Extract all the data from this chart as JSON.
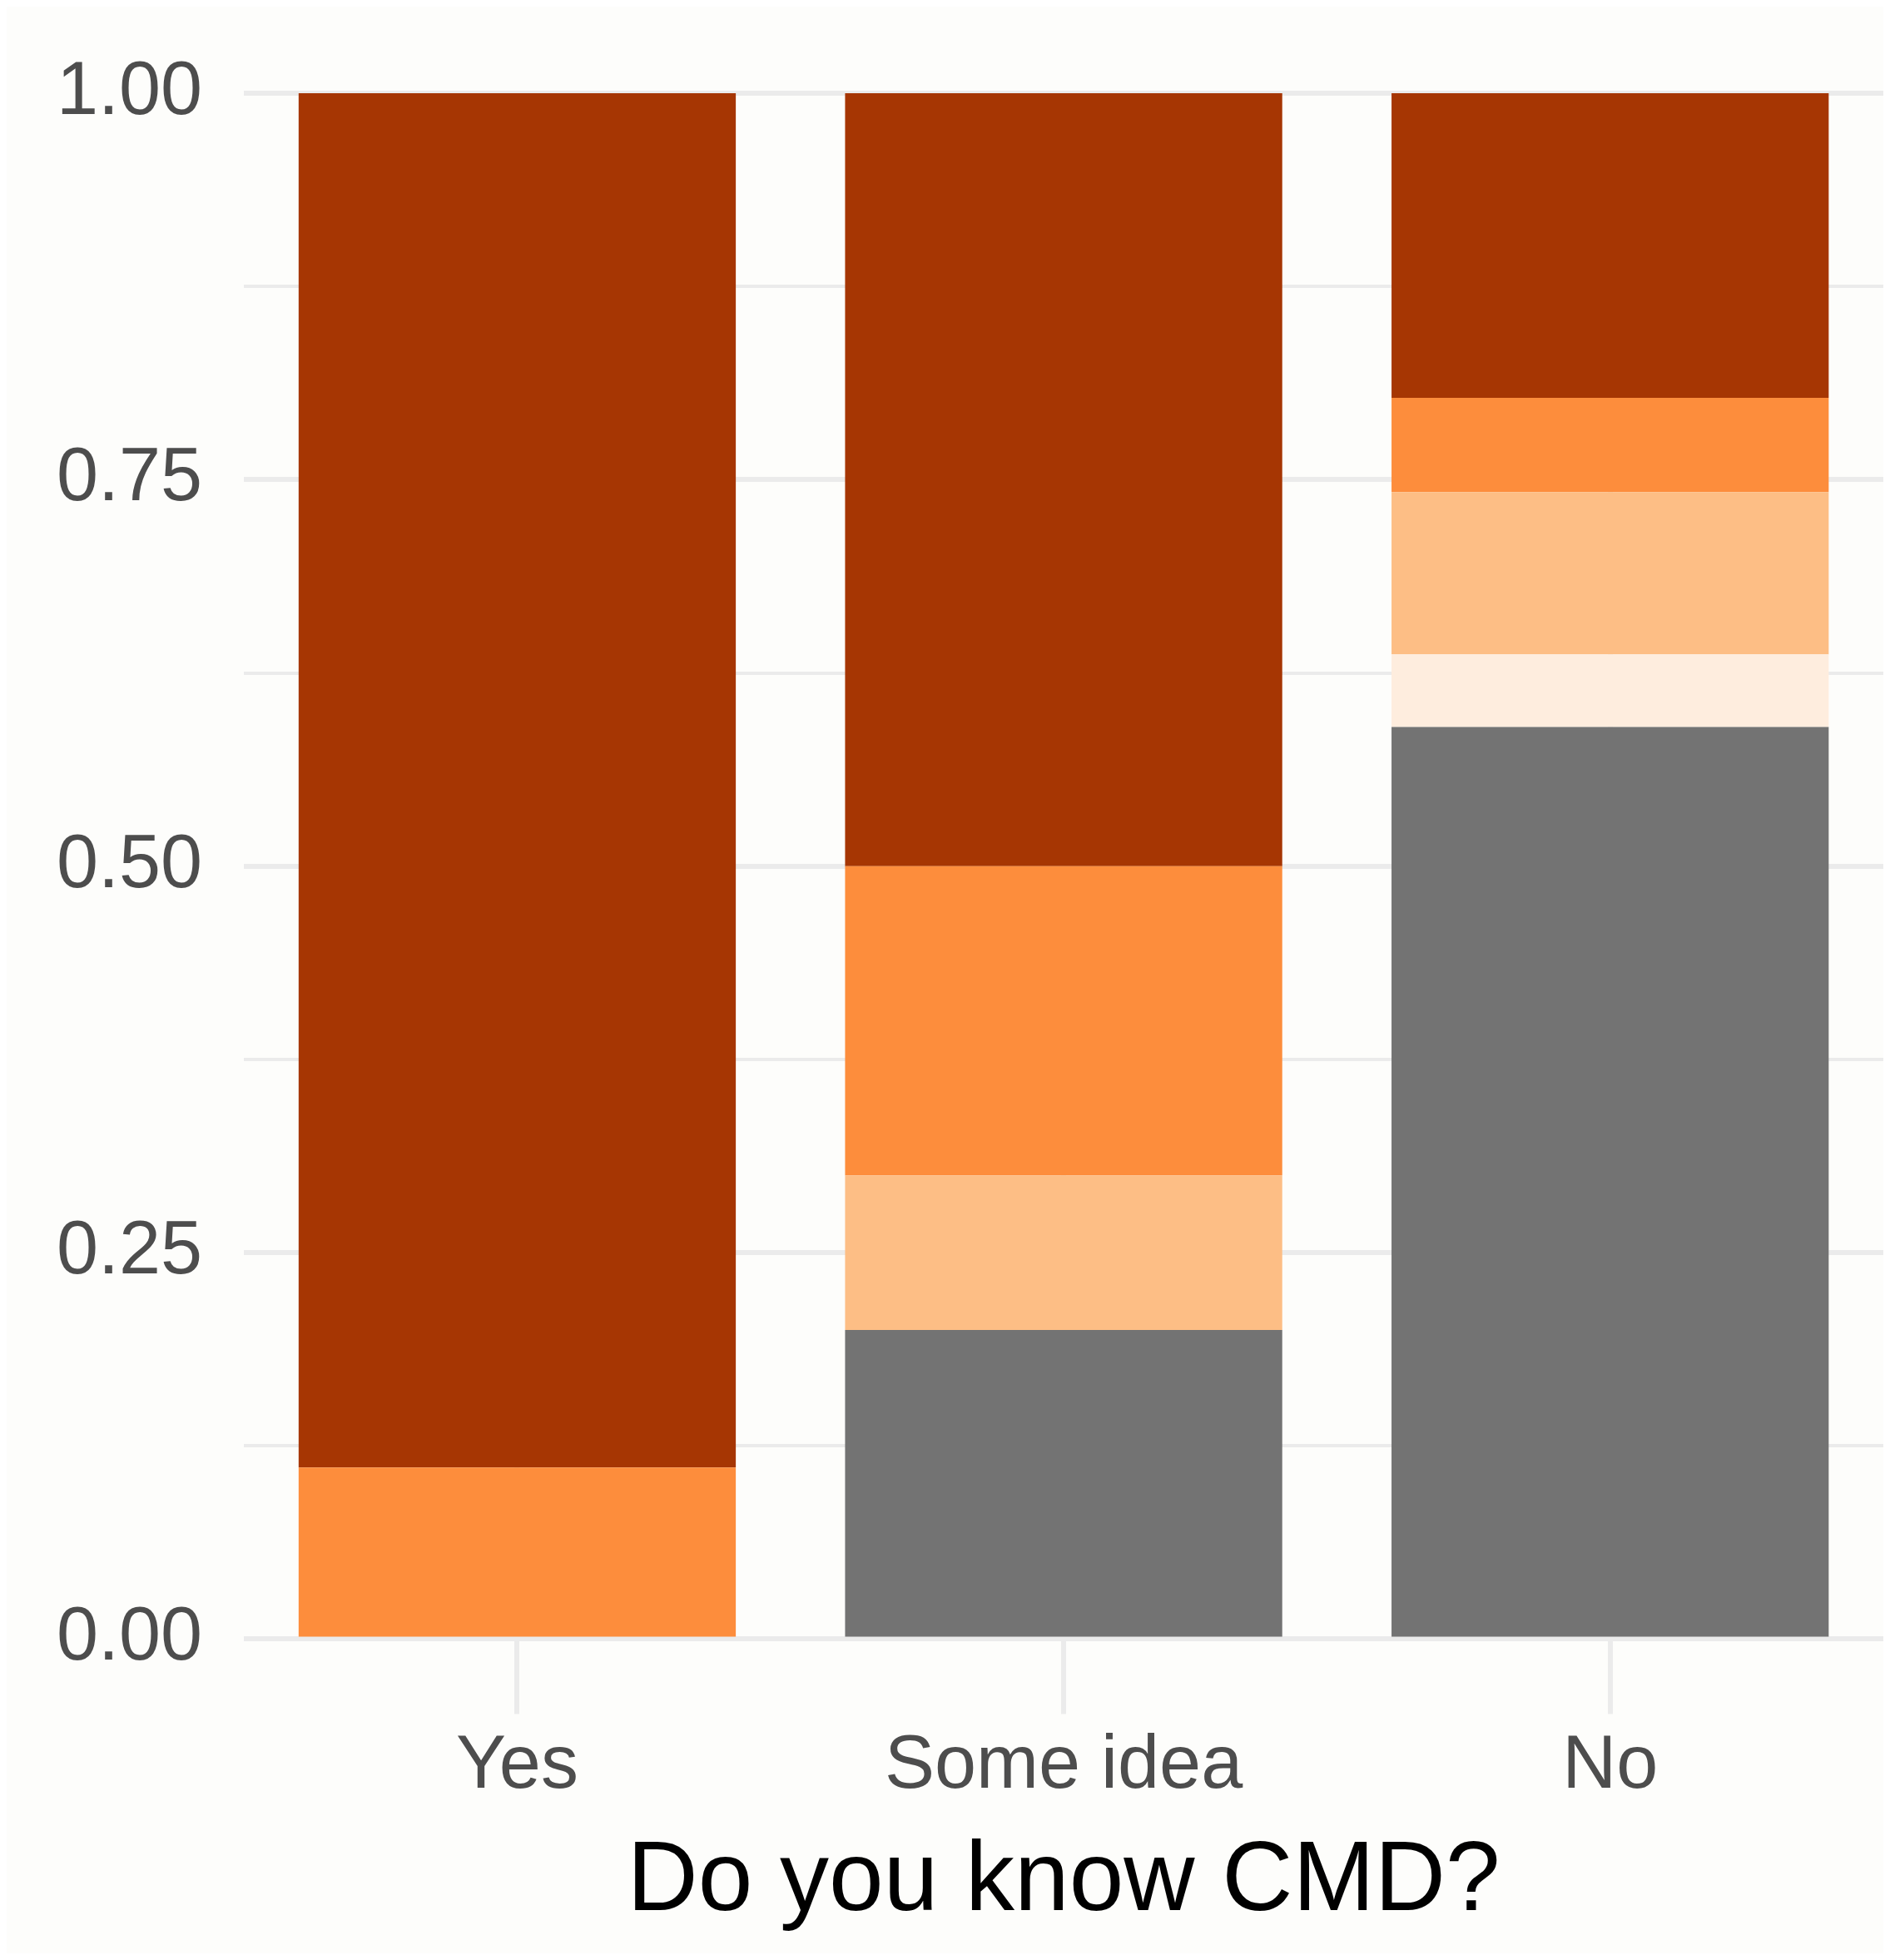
{
  "chart_data": {
    "type": "bar",
    "stacked": true,
    "xlabel": "Do you know CMD?",
    "categories": [
      "Yes",
      "Some idea",
      "No"
    ],
    "series": [
      {
        "color": "#737373",
        "values": [
          0,
          0.2,
          0.59
        ]
      },
      {
        "color": "#feedde",
        "values": [
          0,
          0,
          0.047
        ]
      },
      {
        "color": "#fdbe85",
        "values": [
          0,
          0.1,
          0.105
        ]
      },
      {
        "color": "#fd8d3c",
        "values": [
          0.111,
          0.2,
          0.061
        ]
      },
      {
        "color": "#a63603",
        "values": [
          0.889,
          0.5,
          0.197
        ]
      }
    ],
    "ylim": [
      0,
      1
    ],
    "yticks": [
      {
        "value": 0,
        "label": "0.00"
      },
      {
        "value": 0.125,
        "label": null
      },
      {
        "value": 0.25,
        "label": "0.25"
      },
      {
        "value": 0.375,
        "label": null
      },
      {
        "value": 0.5,
        "label": "0.50"
      },
      {
        "value": 0.625,
        "label": null
      },
      {
        "value": 0.75,
        "label": "0.75"
      },
      {
        "value": 0.875,
        "label": null
      },
      {
        "value": 1,
        "label": "1.00"
      }
    ],
    "grid": true,
    "legend": false
  }
}
